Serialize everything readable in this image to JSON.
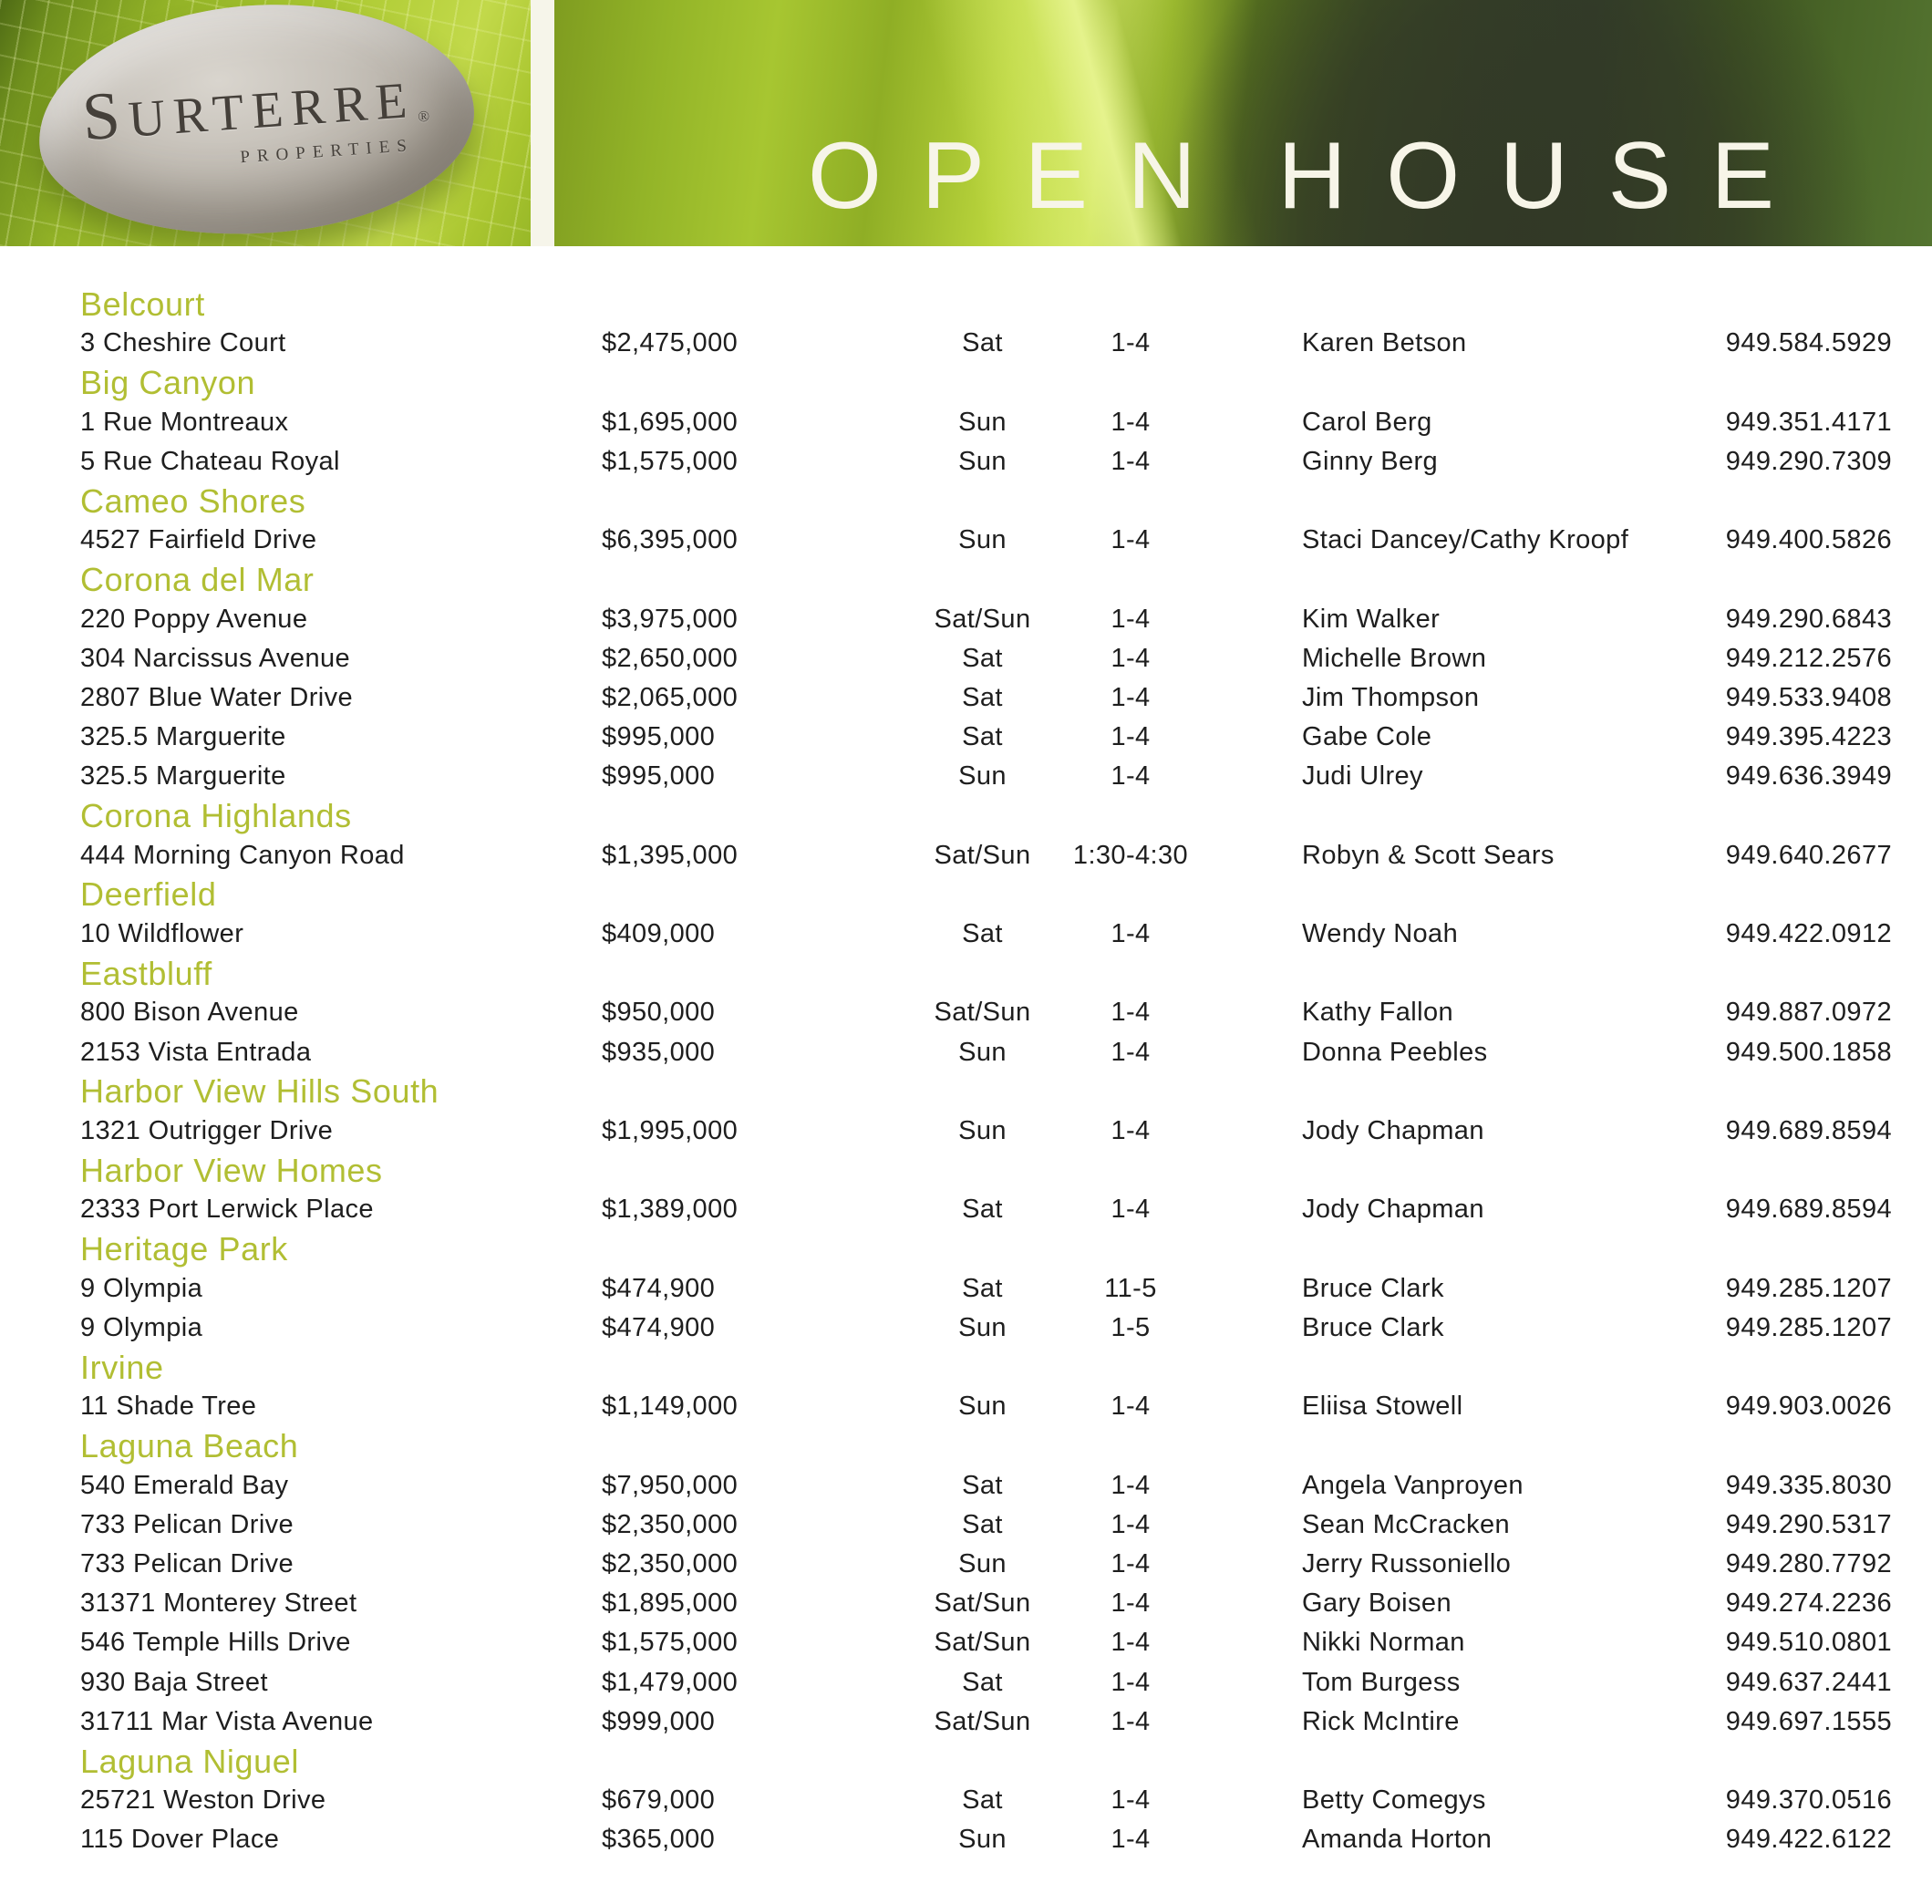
{
  "brand": {
    "name": "SURTERRE",
    "registered": "®",
    "subtitle": "PROPERTIES"
  },
  "banner": {
    "title_word1": "OPEN",
    "title_word2": "HOUSE"
  },
  "colors": {
    "accent_green": "#b1be33",
    "text": "#1e1e1e",
    "banner_bright_green": "#b9d43c",
    "banner_dark_green": "#36452a",
    "title_white": "#f7f5e8",
    "header_gap": "#f6f5ea"
  },
  "sections": [
    {
      "name": "Belcourt",
      "listings": [
        {
          "address": "3 Cheshire Court",
          "price": "$2,475,000",
          "day": "Sat",
          "time": "1-4",
          "agent": "Karen Betson",
          "phone": "949.584.5929"
        }
      ]
    },
    {
      "name": "Big Canyon",
      "listings": [
        {
          "address": "1 Rue Montreaux",
          "price": "$1,695,000",
          "day": "Sun",
          "time": "1-4",
          "agent": "Carol Berg",
          "phone": "949.351.4171"
        },
        {
          "address": "5 Rue Chateau Royal",
          "price": "$1,575,000",
          "day": "Sun",
          "time": "1-4",
          "agent": "Ginny Berg",
          "phone": "949.290.7309"
        }
      ]
    },
    {
      "name": "Cameo Shores",
      "listings": [
        {
          "address": "4527 Fairfield Drive",
          "price": "$6,395,000",
          "day": "Sun",
          "time": "1-4",
          "agent": "Staci Dancey/Cathy Kroopf",
          "phone": "949.400.5826"
        }
      ]
    },
    {
      "name": "Corona del Mar",
      "listings": [
        {
          "address": "220 Poppy Avenue",
          "price": "$3,975,000",
          "day": "Sat/Sun",
          "time": "1-4",
          "agent": "Kim Walker",
          "phone": "949.290.6843"
        },
        {
          "address": "304 Narcissus Avenue",
          "price": "$2,650,000",
          "day": "Sat",
          "time": "1-4",
          "agent": "Michelle Brown",
          "phone": "949.212.2576"
        },
        {
          "address": "2807 Blue Water Drive",
          "price": "$2,065,000",
          "day": "Sat",
          "time": "1-4",
          "agent": "Jim Thompson",
          "phone": "949.533.9408"
        },
        {
          "address": "325.5 Marguerite",
          "price": "$995,000",
          "day": "Sat",
          "time": "1-4",
          "agent": "Gabe Cole",
          "phone": "949.395.4223"
        },
        {
          "address": "325.5 Marguerite",
          "price": "$995,000",
          "day": "Sun",
          "time": "1-4",
          "agent": "Judi Ulrey",
          "phone": "949.636.3949"
        }
      ]
    },
    {
      "name": "Corona Highlands",
      "listings": [
        {
          "address": "444 Morning Canyon Road",
          "price": "$1,395,000",
          "day": "Sat/Sun",
          "time": "1:30-4:30",
          "agent": "Robyn & Scott Sears",
          "phone": "949.640.2677"
        }
      ]
    },
    {
      "name": "Deerfield",
      "listings": [
        {
          "address": "10 Wildflower",
          "price": "$409,000",
          "day": "Sat",
          "time": "1-4",
          "agent": "Wendy Noah",
          "phone": "949.422.0912"
        }
      ]
    },
    {
      "name": "Eastbluff",
      "listings": [
        {
          "address": "800 Bison Avenue",
          "price": "$950,000",
          "day": "Sat/Sun",
          "time": "1-4",
          "agent": "Kathy Fallon",
          "phone": "949.887.0972"
        },
        {
          "address": "2153 Vista Entrada",
          "price": "$935,000",
          "day": "Sun",
          "time": "1-4",
          "agent": "Donna Peebles",
          "phone": "949.500.1858"
        }
      ]
    },
    {
      "name": "Harbor View Hills South",
      "listings": [
        {
          "address": "1321 Outrigger Drive",
          "price": "$1,995,000",
          "day": "Sun",
          "time": "1-4",
          "agent": "Jody Chapman",
          "phone": "949.689.8594"
        }
      ]
    },
    {
      "name": "Harbor View Homes",
      "listings": [
        {
          "address": "2333 Port Lerwick Place",
          "price": "$1,389,000",
          "day": "Sat",
          "time": "1-4",
          "agent": "Jody Chapman",
          "phone": "949.689.8594"
        }
      ]
    },
    {
      "name": "Heritage Park",
      "listings": [
        {
          "address": "9 Olympia",
          "price": "$474,900",
          "day": "Sat",
          "time": "11-5",
          "agent": "Bruce Clark",
          "phone": "949.285.1207"
        },
        {
          "address": "9 Olympia",
          "price": "$474,900",
          "day": "Sun",
          "time": "1-5",
          "agent": "Bruce Clark",
          "phone": "949.285.1207"
        }
      ]
    },
    {
      "name": "Irvine",
      "listings": [
        {
          "address": "11 Shade Tree",
          "price": "$1,149,000",
          "day": "Sun",
          "time": "1-4",
          "agent": "Eliisa Stowell",
          "phone": "949.903.0026"
        }
      ]
    },
    {
      "name": "Laguna Beach",
      "listings": [
        {
          "address": "540 Emerald Bay",
          "price": "$7,950,000",
          "day": "Sat",
          "time": "1-4",
          "agent": "Angela Vanproyen",
          "phone": "949.335.8030"
        },
        {
          "address": "733 Pelican Drive",
          "price": "$2,350,000",
          "day": "Sat",
          "time": "1-4",
          "agent": "Sean McCracken",
          "phone": "949.290.5317"
        },
        {
          "address": "733 Pelican Drive",
          "price": "$2,350,000",
          "day": "Sun",
          "time": "1-4",
          "agent": "Jerry Russoniello",
          "phone": "949.280.7792"
        },
        {
          "address": "31371 Monterey Street",
          "price": "$1,895,000",
          "day": "Sat/Sun",
          "time": "1-4",
          "agent": "Gary Boisen",
          "phone": "949.274.2236"
        },
        {
          "address": "546 Temple Hills Drive",
          "price": "$1,575,000",
          "day": "Sat/Sun",
          "time": "1-4",
          "agent": "Nikki Norman",
          "phone": "949.510.0801"
        },
        {
          "address": "930 Baja Street",
          "price": "$1,479,000",
          "day": "Sat",
          "time": "1-4",
          "agent": "Tom Burgess",
          "phone": "949.637.2441"
        },
        {
          "address": "31711 Mar Vista Avenue",
          "price": "$999,000",
          "day": "Sat/Sun",
          "time": "1-4",
          "agent": "Rick McIntire",
          "phone": "949.697.1555"
        }
      ]
    },
    {
      "name": "Laguna Niguel",
      "listings": [
        {
          "address": "25721 Weston Drive",
          "price": "$679,000",
          "day": "Sat",
          "time": "1-4",
          "agent": "Betty Comegys",
          "phone": "949.370.0516"
        },
        {
          "address": "115 Dover Place",
          "price": "$365,000",
          "day": "Sun",
          "time": "1-4",
          "agent": "Amanda Horton",
          "phone": "949.422.6122"
        }
      ]
    }
  ]
}
